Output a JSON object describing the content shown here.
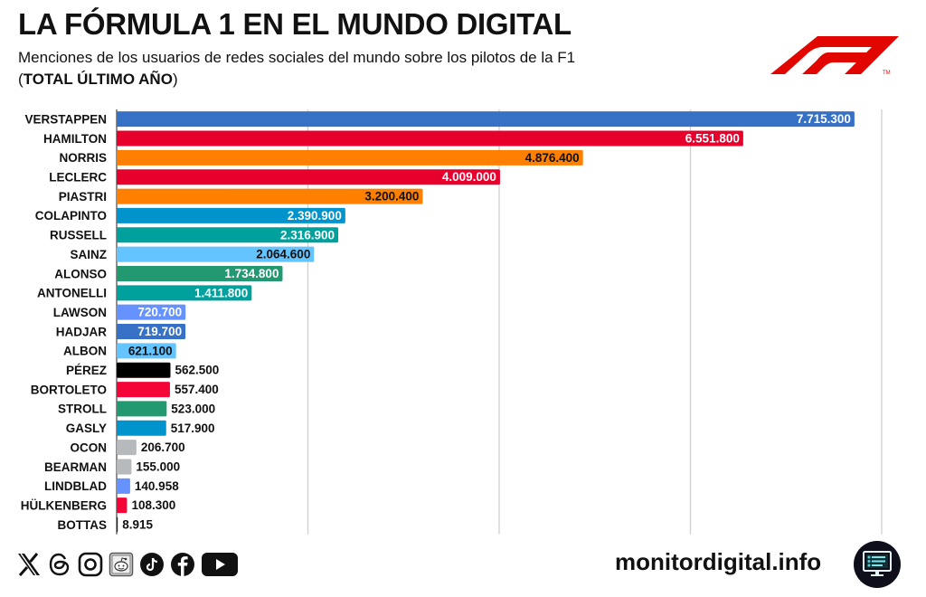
{
  "header": {
    "title": "LA FÓRMULA 1 EN EL MUNDO DIGITAL",
    "subtitle": "Menciones de los usuarios de redes sociales del mundo sobre los pilotos de la F1",
    "subtitle2_prefix": "(",
    "subtitle2_bold": "TOTAL ÚLTIMO AÑO",
    "subtitle2_suffix": ")",
    "logo": "f1-logo",
    "logo_color": "#e10600"
  },
  "chart_data": {
    "type": "bar",
    "orientation": "horizontal",
    "title": "LA FÓRMULA 1 EN EL MUNDO DIGITAL",
    "xlabel": "",
    "ylabel": "",
    "xlim": [
      0,
      8000000
    ],
    "grid": true,
    "gridlines": [
      2000000,
      4000000,
      6000000,
      8000000
    ],
    "categories": [
      "VERSTAPPEN",
      "HAMILTON",
      "NORRIS",
      "LECLERC",
      "PIASTRI",
      "COLAPINTO",
      "RUSSELL",
      "SAINZ",
      "ALONSO",
      "ANTONELLI",
      "LAWSON",
      "HADJAR",
      "ALBON",
      "PÉREZ",
      "BORTOLETO",
      "STROLL",
      "GASLY",
      "OCON",
      "BEARMAN",
      "LINDBLAD",
      "HÜLKENBERG",
      "BOTTAS"
    ],
    "values": [
      7715300,
      6551800,
      4876400,
      4009000,
      3200400,
      2390900,
      2316900,
      2064600,
      1734800,
      1411800,
      720700,
      719700,
      621100,
      562500,
      557400,
      523000,
      517900,
      206700,
      155000,
      140958,
      108300,
      8915
    ],
    "labels": [
      "7.715.300",
      "6.551.800",
      "4.876.400",
      "4.009.000",
      "3.200.400",
      "2.390.900",
      "2.316.900",
      "2.064.600",
      "1.734.800",
      "1.411.800",
      "720.700",
      "719.700",
      "621.100",
      "562.500",
      "557.400",
      "523.000",
      "517.900",
      "206.700",
      "155.000",
      "140.958",
      "108.300",
      "8.915"
    ],
    "colors": [
      "#3671c6",
      "#e8002d",
      "#ff8000",
      "#e8002d",
      "#ff8000",
      "#0093cc",
      "#00a19c",
      "#64c4ff",
      "#229971",
      "#00a19c",
      "#6692ff",
      "#3671c6",
      "#64c4ff",
      "#000000",
      "#f50537",
      "#229971",
      "#0093cc",
      "#b6babd",
      "#b6babd",
      "#6692ff",
      "#f50537",
      "#222222"
    ],
    "label_colors": [
      "#ffffff",
      "#ffffff",
      "#111111",
      "#ffffff",
      "#111111",
      "#ffffff",
      "#ffffff",
      "#111111",
      "#ffffff",
      "#ffffff",
      "#ffffff",
      "#ffffff",
      "#111111",
      "#111111",
      "#111111",
      "#111111",
      "#111111",
      "#111111",
      "#111111",
      "#111111",
      "#111111",
      "#111111"
    ],
    "label_position": [
      "inside",
      "inside",
      "inside",
      "inside",
      "inside",
      "inside",
      "inside",
      "inside",
      "inside",
      "inside",
      "inside",
      "inside",
      "inside",
      "outside",
      "outside",
      "outside",
      "outside",
      "outside",
      "outside",
      "outside",
      "outside",
      "outside"
    ]
  },
  "footer": {
    "social_icons": [
      "x-icon",
      "threads-icon",
      "instagram-icon",
      "reddit-icon",
      "tiktok-icon",
      "facebook-icon",
      "youtube-icon"
    ],
    "site": "monitordigital.info",
    "site_icon": "monitor-icon"
  }
}
